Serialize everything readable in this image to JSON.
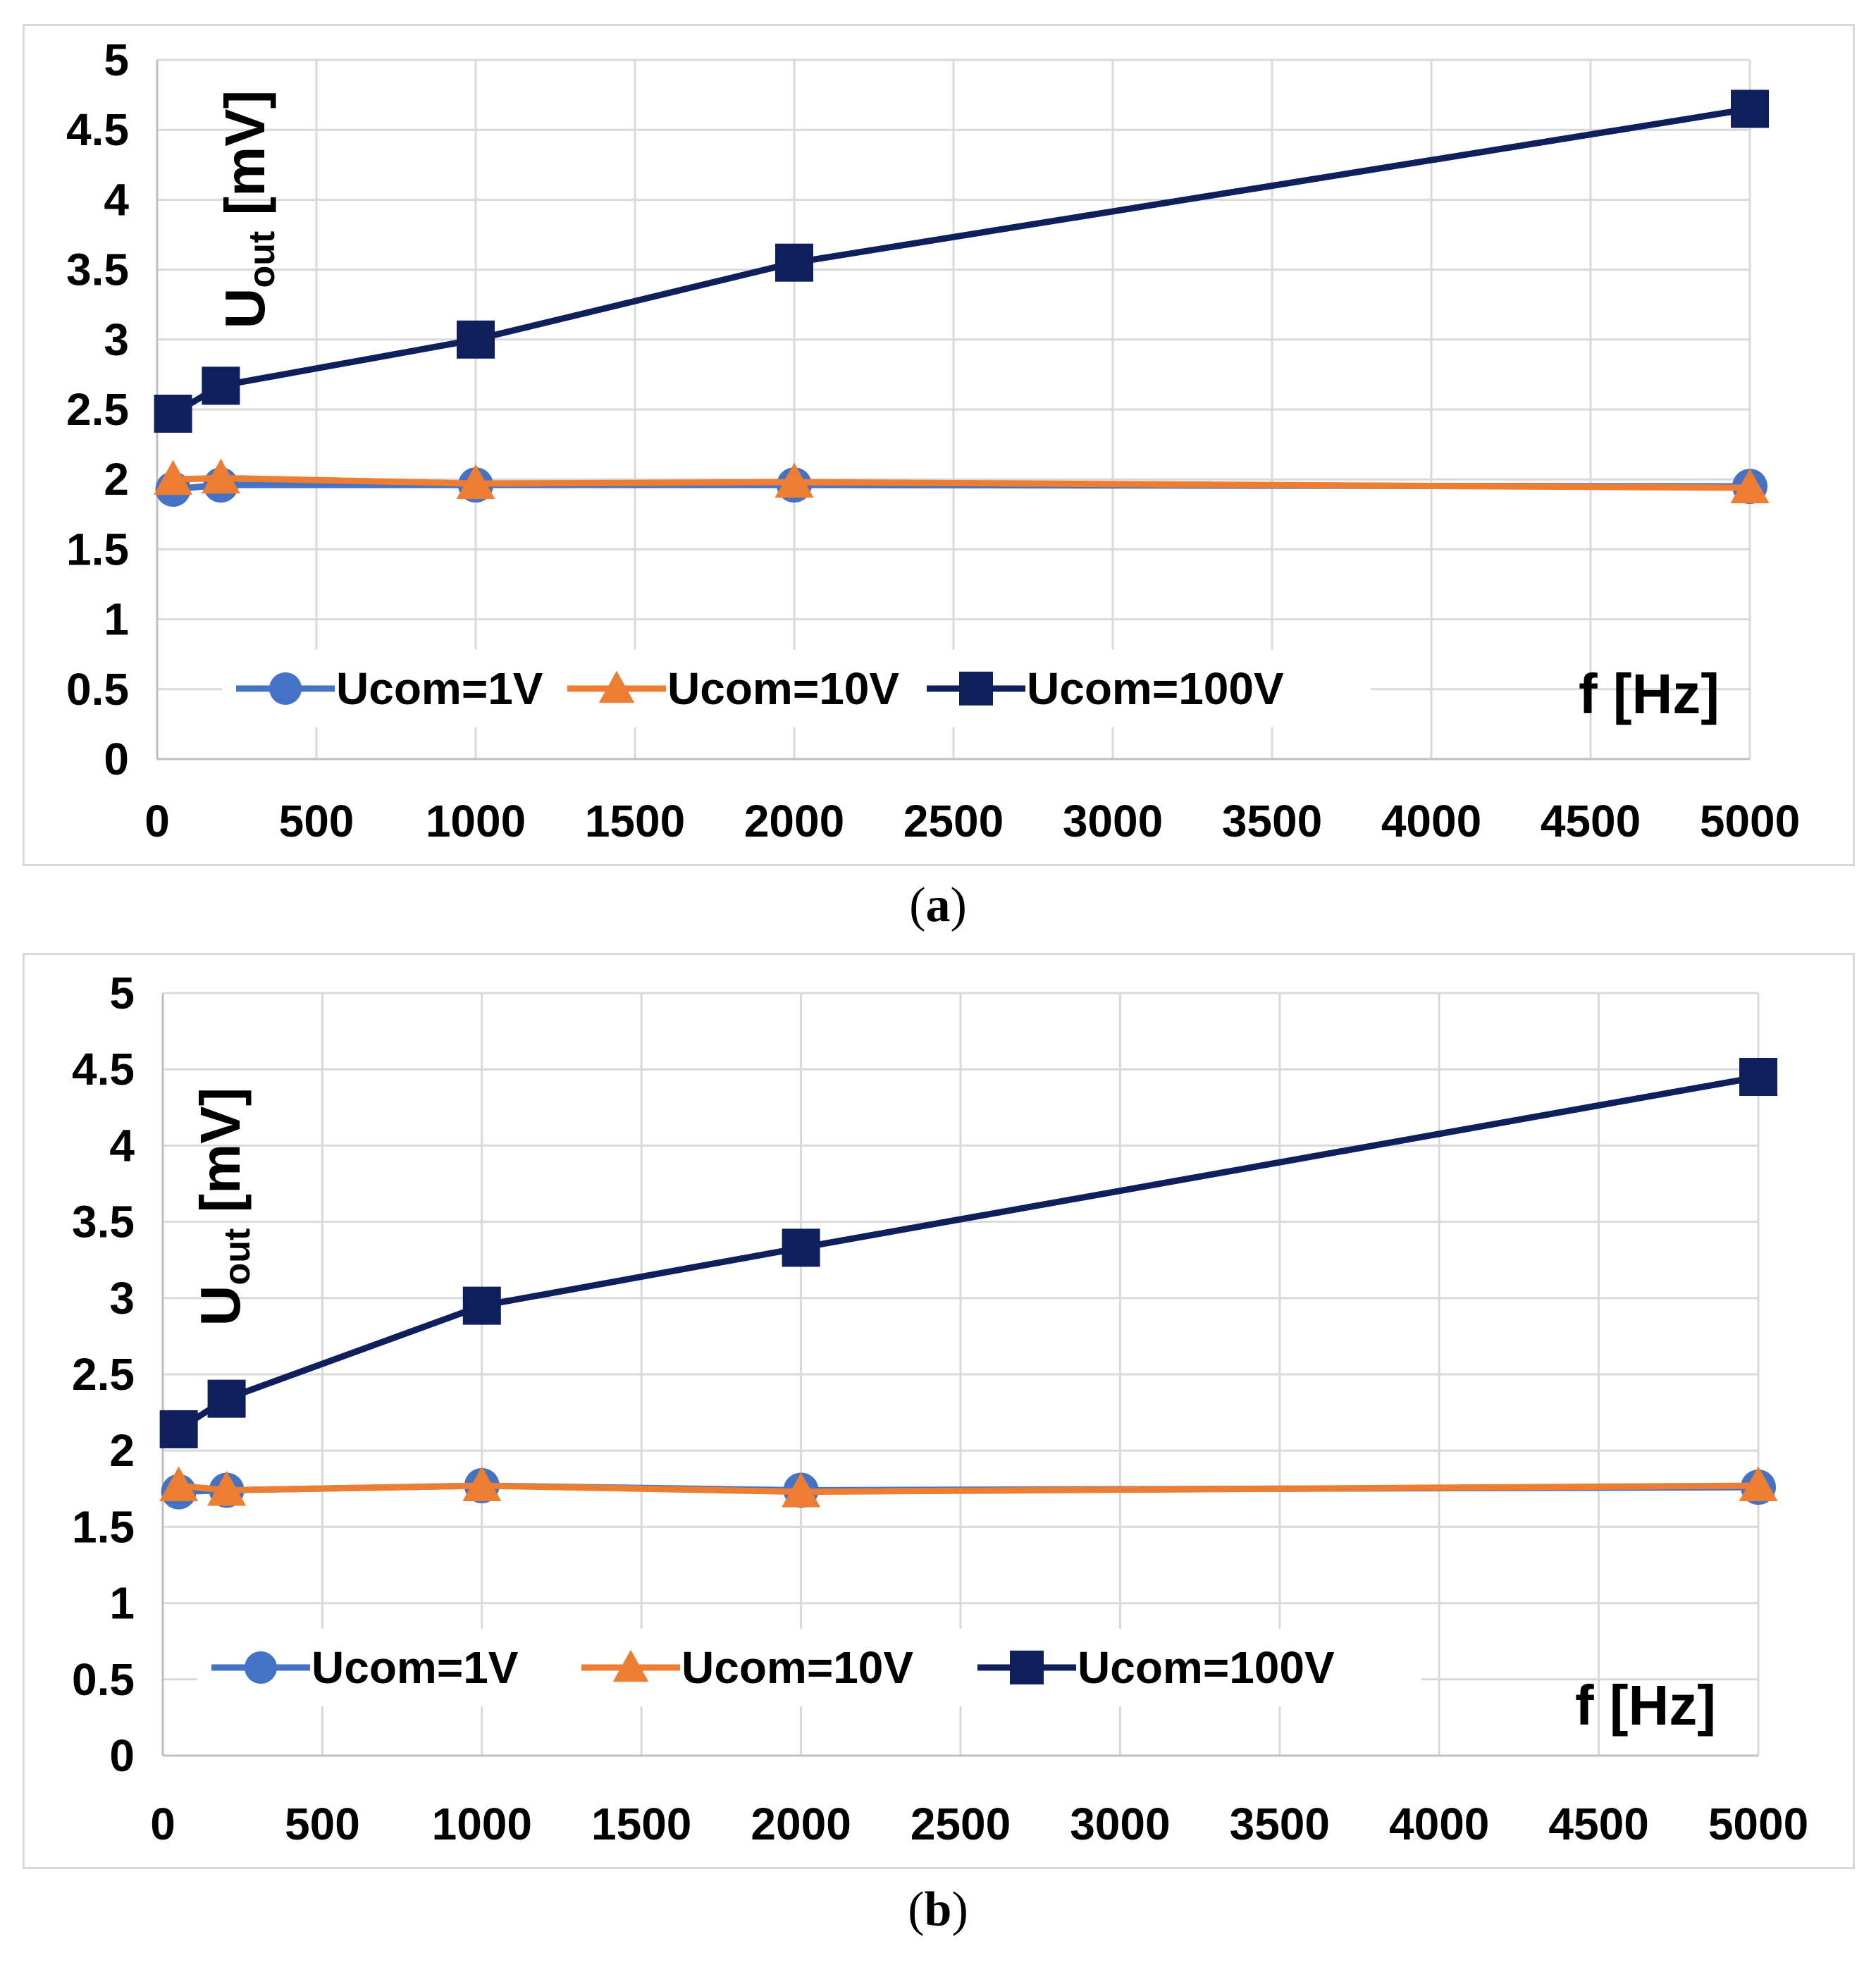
{
  "chart_data": [
    {
      "type": "line",
      "panel": "a",
      "caption_letter": "a",
      "title": "",
      "xlabel": "f [Hz]",
      "ylabel_main": "U",
      "ylabel_sub": "out",
      "ylabel_unit": "[mV]",
      "xlim": [
        0,
        5000
      ],
      "ylim": [
        0,
        5
      ],
      "xticks": [
        0,
        500,
        1000,
        1500,
        2000,
        2500,
        3000,
        3500,
        4000,
        4500,
        5000
      ],
      "yticks": [
        0,
        0.5,
        1,
        1.5,
        2,
        2.5,
        3,
        3.5,
        4,
        4.5,
        5
      ],
      "ytick_labels": [
        "0",
        "0.5",
        "1",
        "1.5",
        "2",
        "2.5",
        "3",
        "3.5",
        "4",
        "4.5",
        "5"
      ],
      "grid": true,
      "legend_position": "bottom-center",
      "x": [
        50,
        200,
        1000,
        2000,
        5000
      ],
      "series": [
        {
          "name": "Ucom=1V",
          "marker": "circle",
          "color": "#4472c4",
          "values": [
            1.93,
            1.96,
            1.96,
            1.96,
            1.95
          ]
        },
        {
          "name": "Ucom=10V",
          "marker": "triangle",
          "color": "#ed7d31",
          "values": [
            2.0,
            2.01,
            1.97,
            1.98,
            1.94
          ]
        },
        {
          "name": "Ucom=100V",
          "marker": "square",
          "color": "#0f1f5c",
          "values": [
            2.47,
            2.67,
            3.0,
            3.55,
            4.65
          ]
        }
      ]
    },
    {
      "type": "line",
      "panel": "b",
      "caption_letter": "b",
      "title": "",
      "xlabel": "f [Hz]",
      "ylabel_main": "U",
      "ylabel_sub": "out",
      "ylabel_unit": "[mV]",
      "xlim": [
        0,
        5000
      ],
      "ylim": [
        0,
        5
      ],
      "xticks": [
        0,
        500,
        1000,
        1500,
        2000,
        2500,
        3000,
        3500,
        4000,
        4500,
        5000
      ],
      "yticks": [
        0,
        0.5,
        1,
        1.5,
        2,
        2.5,
        3,
        3.5,
        4,
        4.5,
        5
      ],
      "ytick_labels": [
        "0",
        "0.5",
        "1",
        "1.5",
        "2",
        "2.5",
        "3",
        "3.5",
        "4",
        "4.5",
        "5"
      ],
      "grid": true,
      "legend_position": "bottom-center",
      "x": [
        50,
        200,
        1000,
        2000,
        5000
      ],
      "series": [
        {
          "name": "Ucom=1V",
          "marker": "circle",
          "color": "#4472c4",
          "values": [
            1.73,
            1.74,
            1.77,
            1.74,
            1.76
          ]
        },
        {
          "name": "Ucom=10V",
          "marker": "triangle",
          "color": "#ed7d31",
          "values": [
            1.77,
            1.74,
            1.77,
            1.73,
            1.77
          ]
        },
        {
          "name": "Ucom=100V",
          "marker": "square",
          "color": "#0f1f5c",
          "values": [
            2.14,
            2.34,
            2.95,
            3.33,
            4.45
          ]
        }
      ]
    }
  ]
}
